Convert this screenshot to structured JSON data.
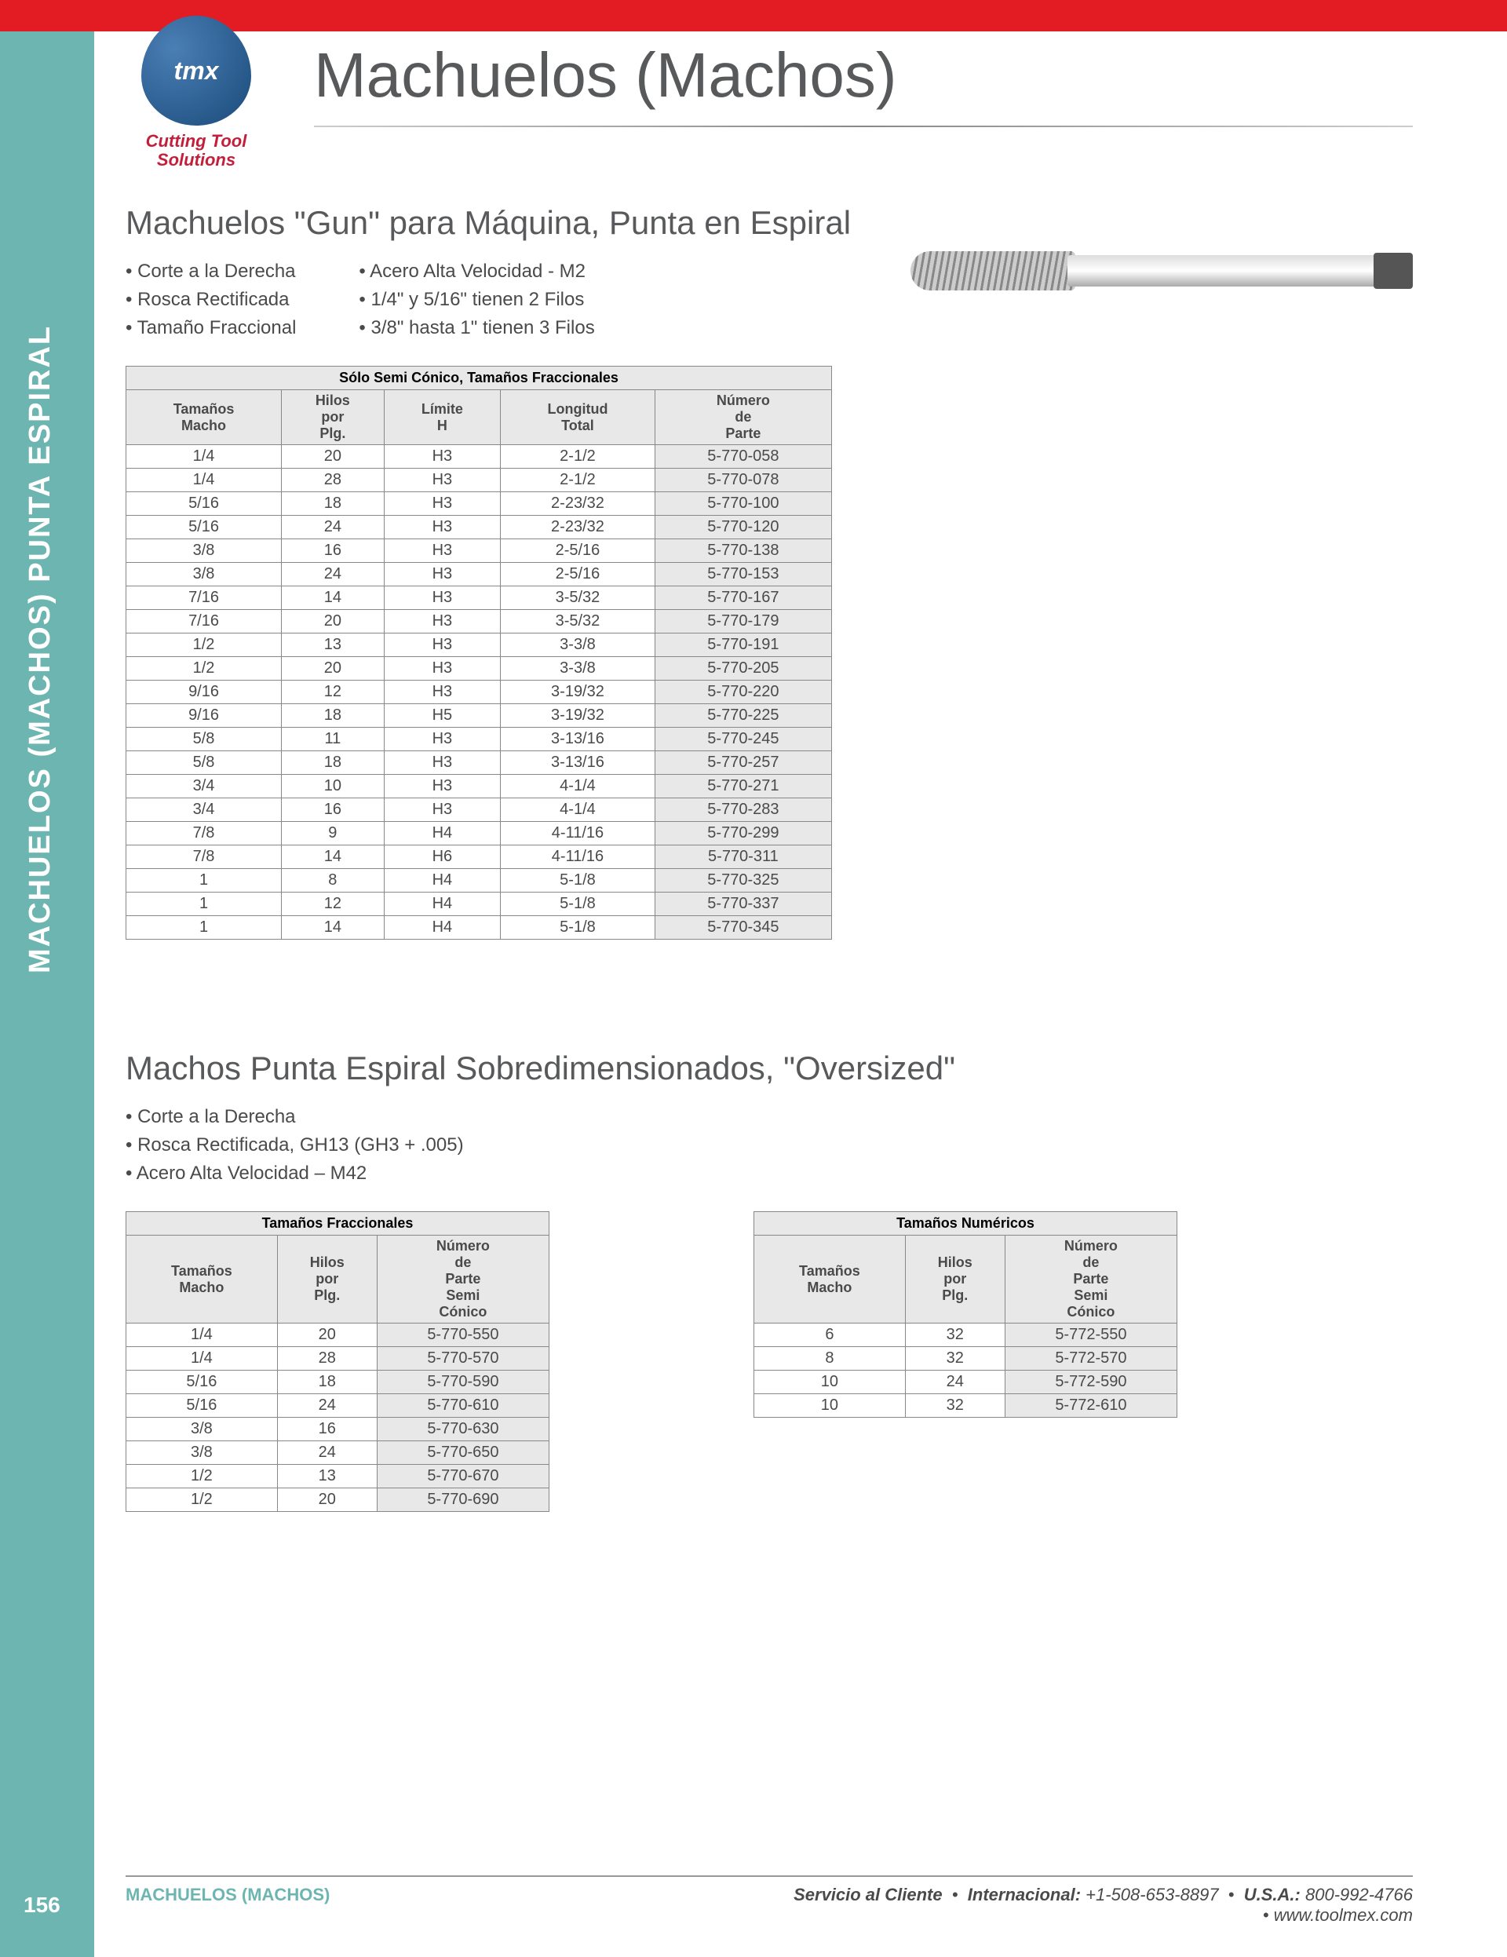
{
  "page_number": "156",
  "sidebar_label": "MACHUELOS (MACHOS) PUNTA ESPIRAL",
  "logo": {
    "brand": "tmx",
    "tagline1": "Cutting Tool",
    "tagline2": "Solutions"
  },
  "page_title": "Machuelos (Machos)",
  "section1": {
    "title": "Machuelos \"Gun\" para Máquina, Punta en Espiral",
    "features_left": [
      "Corte a la Derecha",
      "Rosca Rectificada",
      "Tamaño Fraccional"
    ],
    "features_right": [
      "Acero Alta Velocidad - M2",
      "1/4\" y 5/16\" tienen 2 Filos",
      "3/8\" hasta 1\" tienen 3 Filos"
    ],
    "table_caption": "Sólo Semi Cónico, Tamaños Fraccionales",
    "headers": [
      "Tamaños Macho",
      "Hilos por Plg.",
      "Límite H",
      "Longitud Total",
      "Número de Parte"
    ],
    "rows": [
      [
        "1/4",
        "20",
        "H3",
        "2-1/2",
        "5-770-058"
      ],
      [
        "1/4",
        "28",
        "H3",
        "2-1/2",
        "5-770-078"
      ],
      [
        "5/16",
        "18",
        "H3",
        "2-23/32",
        "5-770-100"
      ],
      [
        "5/16",
        "24",
        "H3",
        "2-23/32",
        "5-770-120"
      ],
      [
        "3/8",
        "16",
        "H3",
        "2-5/16",
        "5-770-138"
      ],
      [
        "3/8",
        "24",
        "H3",
        "2-5/16",
        "5-770-153"
      ],
      [
        "7/16",
        "14",
        "H3",
        "3-5/32",
        "5-770-167"
      ],
      [
        "7/16",
        "20",
        "H3",
        "3-5/32",
        "5-770-179"
      ],
      [
        "1/2",
        "13",
        "H3",
        "3-3/8",
        "5-770-191"
      ],
      [
        "1/2",
        "20",
        "H3",
        "3-3/8",
        "5-770-205"
      ],
      [
        "9/16",
        "12",
        "H3",
        "3-19/32",
        "5-770-220"
      ],
      [
        "9/16",
        "18",
        "H5",
        "3-19/32",
        "5-770-225"
      ],
      [
        "5/8",
        "11",
        "H3",
        "3-13/16",
        "5-770-245"
      ],
      [
        "5/8",
        "18",
        "H3",
        "3-13/16",
        "5-770-257"
      ],
      [
        "3/4",
        "10",
        "H3",
        "4-1/4",
        "5-770-271"
      ],
      [
        "3/4",
        "16",
        "H3",
        "4-1/4",
        "5-770-283"
      ],
      [
        "7/8",
        "9",
        "H4",
        "4-11/16",
        "5-770-299"
      ],
      [
        "7/8",
        "14",
        "H6",
        "4-11/16",
        "5-770-311"
      ],
      [
        "1",
        "8",
        "H4",
        "5-1/8",
        "5-770-325"
      ],
      [
        "1",
        "12",
        "H4",
        "5-1/8",
        "5-770-337"
      ],
      [
        "1",
        "14",
        "H4",
        "5-1/8",
        "5-770-345"
      ]
    ]
  },
  "section2": {
    "title": "Machos Punta Espiral Sobredimensionados, \"Oversized\"",
    "features": [
      "Corte a la Derecha",
      "Rosca Rectificada, GH13 (GH3 + .005)",
      "Acero Alta Velocidad – M42"
    ],
    "table_a": {
      "caption": "Tamaños Fraccionales",
      "headers": [
        "Tamaños Macho",
        "Hilos por Plg.",
        "Número de Parte Semi Cónico"
      ],
      "rows": [
        [
          "1/4",
          "20",
          "5-770-550"
        ],
        [
          "1/4",
          "28",
          "5-770-570"
        ],
        [
          "5/16",
          "18",
          "5-770-590"
        ],
        [
          "5/16",
          "24",
          "5-770-610"
        ],
        [
          "3/8",
          "16",
          "5-770-630"
        ],
        [
          "3/8",
          "24",
          "5-770-650"
        ],
        [
          "1/2",
          "13",
          "5-770-670"
        ],
        [
          "1/2",
          "20",
          "5-770-690"
        ]
      ]
    },
    "table_b": {
      "caption": "Tamaños Numéricos",
      "headers": [
        "Tamaños Macho",
        "Hilos por Plg.",
        "Número de Parte Semi Cónico"
      ],
      "rows": [
        [
          "6",
          "32",
          "5-772-550"
        ],
        [
          "8",
          "32",
          "5-772-570"
        ],
        [
          "10",
          "24",
          "5-772-590"
        ],
        [
          "10",
          "32",
          "5-772-610"
        ]
      ]
    }
  },
  "footer": {
    "category": "MACHUELOS (MACHOS)",
    "service_label": "Servicio al Cliente",
    "intl_label": "Internacional:",
    "intl_phone": "+1-508-653-8897",
    "usa_label": "U.S.A.:",
    "usa_phone": "800-992-4766",
    "website": "www.toolmex.com"
  }
}
